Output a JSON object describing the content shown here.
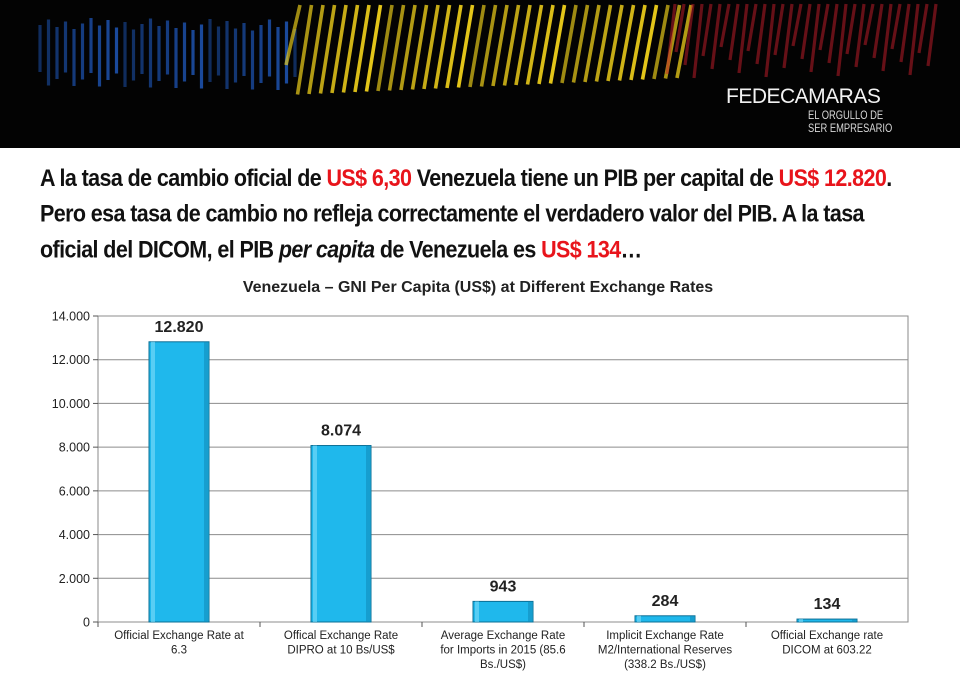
{
  "banner": {
    "brand_name": "FEDECAMARAS",
    "brand_tagline_1": "EL ORGULLO DE",
    "brand_tagline_2": "SER EMPRESARIO",
    "stripe_colors": [
      "#1c4fa8",
      "#f2d21b",
      "#c81e2b"
    ]
  },
  "headline": {
    "p1": "A la tasa de cambio oficial de ",
    "r1": "US$ 6,30",
    "p2": " Venezuela tiene un PIB per capital de ",
    "r2": "US$ 12.820",
    "p3": ". Pero esa tasa de cambio no refleja correctamente el verdadero valor del PIB. A la tasa oficial del DICOM, el PIB ",
    "italic": "per capita",
    "p4": " de Venezuela es ",
    "r3": "US$ 134",
    "p5": "…",
    "highlight_color": "#e8141b"
  },
  "chart_data": {
    "type": "bar",
    "title": "Venezuela – GNI Per Capita (US$) at Different Exchange Rates",
    "xlabel": "",
    "ylabel": "",
    "ylim": [
      0,
      14000
    ],
    "yticks": [
      0,
      2000,
      4000,
      6000,
      8000,
      10000,
      12000,
      14000
    ],
    "ytick_labels": [
      "0",
      "2.000",
      "4.000",
      "6.000",
      "8.000",
      "10.000",
      "12.000",
      "14.000"
    ],
    "grid": true,
    "categories": [
      [
        "Official Exchange Rate at",
        "6.3"
      ],
      [
        "Offical Exchange Rate",
        "DIPRO at 10 Bs/US$"
      ],
      [
        "Average Exchange Rate",
        "for Imports in 2015 (85.6",
        "Bs./US$)"
      ],
      [
        "Implicit Exchange Rate",
        "M2/International Reserves",
        "(338.2 Bs./US$)"
      ],
      [
        "Official Exchange rate",
        "DICOM at 603.22"
      ]
    ],
    "values": [
      12820,
      8074,
      943,
      284,
      134
    ],
    "data_labels": [
      "12.820",
      "8.074",
      "943",
      "284",
      "134"
    ],
    "bar_color": "#1fb8ec"
  }
}
